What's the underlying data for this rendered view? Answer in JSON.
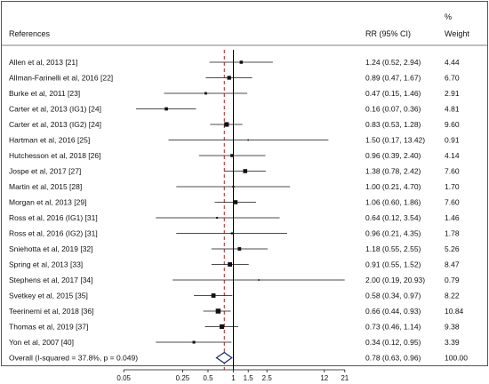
{
  "chart_data": {
    "type": "forest",
    "title": "",
    "headers": {
      "references": "References",
      "rr": "RR (95% CI)",
      "weight_top": "%",
      "weight_bottom": "Weight"
    },
    "x_scale": "log",
    "x_ticks": [
      {
        "label": "0.05",
        "value": 0.05
      },
      {
        "label": "0.25",
        "value": 0.25
      },
      {
        "label": "0.5",
        "value": 0.5
      },
      {
        "label": "1",
        "value": 1
      },
      {
        "label": "1.5",
        "value": 1.5
      },
      {
        "label": "2.5",
        "value": 2.5
      },
      {
        "label": "12",
        "value": 12
      },
      {
        "label": "21",
        "value": 21
      }
    ],
    "null_line": 1,
    "pooled_line": 0.78,
    "studies": [
      {
        "label": "Allen et al, 2013 [21]",
        "rr": 1.24,
        "lo": 0.52,
        "hi": 2.94,
        "ci_text": "1.24 (0.52, 2.94)",
        "weight": "4.44"
      },
      {
        "label": "Allman-Farinelli et al, 2016 [22]",
        "rr": 0.89,
        "lo": 0.47,
        "hi": 1.67,
        "ci_text": "0.89 (0.47, 1.67)",
        "weight": "6.70"
      },
      {
        "label": "Burke et al, 2011 [23]",
        "rr": 0.47,
        "lo": 0.15,
        "hi": 1.46,
        "ci_text": "0.47 (0.15, 1.46)",
        "weight": "2.91"
      },
      {
        "label": "Carter et al, 2013 (IG1) [24]",
        "rr": 0.16,
        "lo": 0.07,
        "hi": 0.36,
        "ci_text": "0.16 (0.07, 0.36)",
        "weight": "4.81"
      },
      {
        "label": "Carter et al, 2013 (IG2) [24]",
        "rr": 0.83,
        "lo": 0.53,
        "hi": 1.28,
        "ci_text": "0.83 (0.53, 1.28)",
        "weight": "9.60"
      },
      {
        "label": "Hartman et al, 2016 [25]",
        "rr": 1.5,
        "lo": 0.17,
        "hi": 13.42,
        "ci_text": "1.50 (0.17, 13.42)",
        "weight": "0.91"
      },
      {
        "label": "Hutchesson et al, 2018 [26]",
        "rr": 0.96,
        "lo": 0.39,
        "hi": 2.4,
        "ci_text": "0.96 (0.39, 2.40)",
        "weight": "4.14"
      },
      {
        "label": "Jospe et al, 2017 [27]",
        "rr": 1.38,
        "lo": 0.78,
        "hi": 2.42,
        "ci_text": "1.38 (0.78, 2.42)",
        "weight": "7.60"
      },
      {
        "label": "Martin et al, 2015 [28]",
        "rr": 1.0,
        "lo": 0.21,
        "hi": 4.7,
        "ci_text": "1.00 (0.21, 4.70)",
        "weight": "1.70"
      },
      {
        "label": "Morgan et al, 2013 [29]",
        "rr": 1.06,
        "lo": 0.6,
        "hi": 1.86,
        "ci_text": "1.06 (0.60, 1.86)",
        "weight": "7.60"
      },
      {
        "label": "Ross et al, 2016 (IG1) [31]",
        "rr": 0.64,
        "lo": 0.12,
        "hi": 3.54,
        "ci_text": "0.64 (0.12, 3.54)",
        "weight": "1.46"
      },
      {
        "label": "Ross et al, 2016 (IG2) [31]",
        "rr": 0.96,
        "lo": 0.21,
        "hi": 4.35,
        "ci_text": "0.96 (0.21, 4.35)",
        "weight": "1.78"
      },
      {
        "label": "Sniehotta et al, 2019 [32]",
        "rr": 1.18,
        "lo": 0.55,
        "hi": 2.55,
        "ci_text": "1.18 (0.55, 2.55)",
        "weight": "5.26"
      },
      {
        "label": "Spring et al, 2013 [33]",
        "rr": 0.91,
        "lo": 0.55,
        "hi": 1.52,
        "ci_text": "0.91 (0.55, 1.52)",
        "weight": "8.47"
      },
      {
        "label": "Stephens et al, 2017 [34]",
        "rr": 2.0,
        "lo": 0.19,
        "hi": 20.93,
        "ci_text": "2.00 (0.19, 20.93)",
        "weight": "0.79"
      },
      {
        "label": "Svetkey et al, 2015 [35]",
        "rr": 0.58,
        "lo": 0.34,
        "hi": 0.97,
        "ci_text": "0.58 (0.34, 0.97)",
        "weight": "8.22"
      },
      {
        "label": "Teerinemi et al, 2018 [36]",
        "rr": 0.66,
        "lo": 0.44,
        "hi": 0.93,
        "ci_text": "0.66 (0.44, 0.93)",
        "weight": "10.84"
      },
      {
        "label": "Thomas et al, 2019 [37]",
        "rr": 0.73,
        "lo": 0.46,
        "hi": 1.14,
        "ci_text": "0.73 (0.46, 1.14)",
        "weight": "9.38"
      },
      {
        "label": "Yon et al, 2007 [40]",
        "rr": 0.34,
        "lo": 0.12,
        "hi": 0.95,
        "ci_text": "0.34 (0.12, 0.95)",
        "weight": "3.39"
      }
    ],
    "overall": {
      "label": "Overall  (I-squared = 37.8%, p = 0.049)",
      "rr": 0.78,
      "lo": 0.63,
      "hi": 0.96,
      "ci_text": "0.78 (0.63, 0.96)",
      "weight": "100.00"
    },
    "colors": {
      "ink": "#111111",
      "frame": "#555555",
      "null_line": "#000000",
      "pooled_line": "#b22222",
      "diamond": "#1a2a6c",
      "square": "#111111"
    }
  }
}
